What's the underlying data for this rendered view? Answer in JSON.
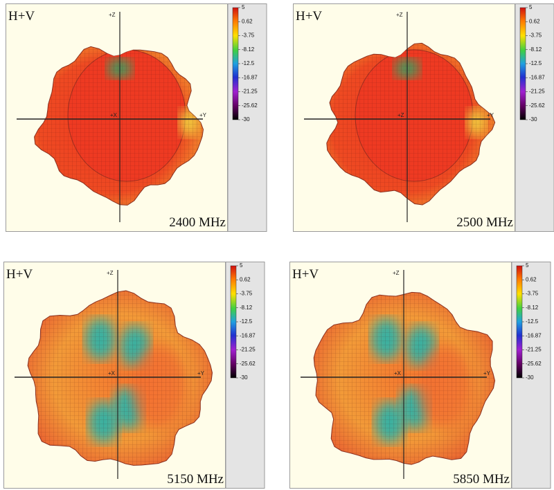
{
  "panels": [
    {
      "label": "H+V",
      "frequency": "2400 MHz",
      "axis_z": "+Z",
      "axis_y": "+Y",
      "axis_x": "+X"
    },
    {
      "label": "H+V",
      "frequency": "2500 MHz",
      "axis_z": "+Z",
      "axis_y": "+Y",
      "axis_x": "+Z"
    },
    {
      "label": "H+V",
      "frequency": "5150 MHz",
      "axis_z": "+Z",
      "axis_y": "+Y",
      "axis_x": "+X"
    },
    {
      "label": "H+V",
      "frequency": "5850 MHz",
      "axis_z": "+Z",
      "axis_y": "+Y",
      "axis_x": "+X"
    }
  ],
  "colorbar": {
    "ticks": [
      5,
      0.62,
      -3.75,
      -8.12,
      -12.5,
      -16.87,
      -21.25,
      -25.62,
      -30
    ]
  }
}
